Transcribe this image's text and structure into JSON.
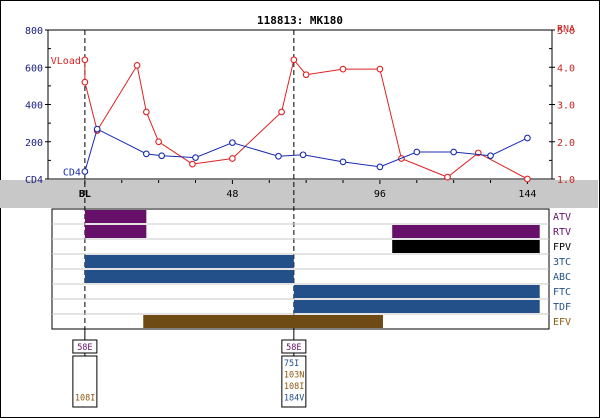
{
  "chart_data": {
    "type": "line",
    "title": "118813: MK180",
    "x_range": [
      -12,
      152
    ],
    "x_ticks": [
      "BL",
      "48",
      "96",
      "144"
    ],
    "x_tick_values": [
      0,
      48,
      96,
      144
    ],
    "left_axis": {
      "label": "CD4",
      "ticks": [
        "800",
        "600",
        "400",
        "200",
        "CD4"
      ],
      "tick_values": [
        800,
        600,
        400,
        200,
        0
      ],
      "range": [
        0,
        800
      ],
      "color": "#1a2080"
    },
    "right_axis": {
      "label": "RNA",
      "ticks": [
        "5.0",
        "4.0",
        "3.0",
        "2.0",
        "1.0"
      ],
      "tick_values": [
        5.0,
        4.0,
        3.0,
        2.0,
        1.0
      ],
      "range": [
        1.0,
        5.0
      ],
      "color": "#cc2222"
    },
    "series": [
      {
        "name": "VLoad",
        "axis": "right",
        "color": "#dd2222",
        "x": [
          0,
          0,
          4,
          17,
          20,
          24,
          35,
          48,
          64,
          68,
          72,
          84,
          96,
          103,
          118,
          128,
          144
        ],
        "y": [
          4.2,
          3.6,
          2.3,
          4.05,
          2.8,
          2.0,
          1.4,
          1.55,
          2.8,
          4.2,
          3.8,
          3.95,
          3.95,
          1.55,
          1.05,
          1.7,
          1.0
        ]
      },
      {
        "name": "CD4",
        "axis": "left",
        "color": "#1a2cb0",
        "x": [
          0,
          4,
          20,
          25,
          36,
          48,
          63,
          71,
          84,
          96,
          108,
          120,
          132,
          144
        ],
        "y": [
          40,
          268,
          135,
          125,
          115,
          195,
          122,
          130,
          92,
          65,
          145,
          145,
          125,
          220
        ]
      }
    ],
    "vertical_markers": [
      0,
      68
    ],
    "drugs": [
      {
        "name": "ATV",
        "color": "#66106a",
        "label_color": "#66106a",
        "start": 0,
        "end": 20
      },
      {
        "name": "RTV",
        "color": "#66106a",
        "label_color": "#66106a",
        "spans": [
          [
            0,
            20
          ],
          [
            100,
            148
          ]
        ]
      },
      {
        "name": "FPV",
        "color": "#000000",
        "label_color": "#000000",
        "start": 100,
        "end": 148
      },
      {
        "name": "3TC",
        "color": "#235088",
        "label_color": "#235088",
        "start": 0,
        "end": 68
      },
      {
        "name": "ABC",
        "color": "#235088",
        "label_color": "#235088",
        "start": 0,
        "end": 68
      },
      {
        "name": "FTC",
        "color": "#235088",
        "label_color": "#235088",
        "start": 68,
        "end": 148
      },
      {
        "name": "TDF",
        "color": "#235088",
        "label_color": "#235088",
        "start": 68,
        "end": 148
      },
      {
        "name": "EFV",
        "color": "#6e4a14",
        "label_color": "#8a5a10",
        "start": 19,
        "end": 97
      }
    ],
    "mutation_boxes": [
      {
        "x": 0,
        "header": "58E",
        "header_color": "#66106a",
        "mutations": [
          {
            "text": "108I",
            "color": "#8a5a10"
          }
        ],
        "mutation_rows": [
          3
        ]
      },
      {
        "x": 68,
        "header": "58E",
        "header_color": "#66106a",
        "mutations": [
          {
            "text": "75I",
            "color": "#235088"
          },
          {
            "text": "103N",
            "color": "#8a5a10"
          },
          {
            "text": "108I",
            "color": "#8a5a10"
          },
          {
            "text": "184V",
            "color": "#235088"
          }
        ],
        "mutation_rows": [
          0,
          1,
          2,
          3
        ]
      }
    ]
  }
}
